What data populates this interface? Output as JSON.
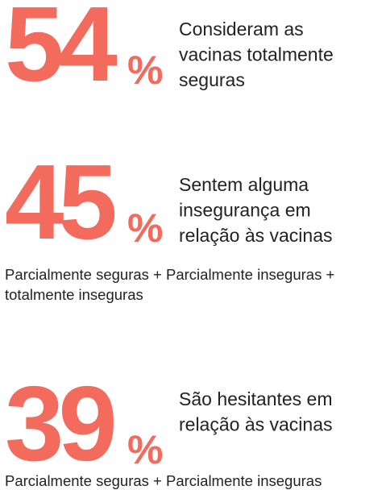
{
  "items": [
    {
      "value": 54,
      "unit": "%",
      "lines": [
        "Consideram as",
        "vacinas totalmente",
        "seguras"
      ]
    },
    {
      "value": 45,
      "unit": "%",
      "lines": [
        "Sentem alguma",
        "insegurança em",
        "relação às vacinas"
      ],
      "note": [
        "Parcialmente seguras + Parcialmente inseguras +",
        "totalmente inseguras"
      ]
    },
    {
      "value": 39,
      "unit": "%",
      "lines": [
        "São hesitantes em",
        "relação às vacinas"
      ],
      "note": [
        "Parcialmente seguras + Parcialmente inseguras"
      ]
    }
  ]
}
